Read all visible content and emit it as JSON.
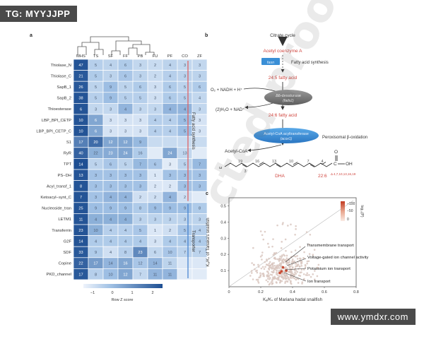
{
  "watermarks": {
    "top_left": "TG: MYYJJPP",
    "bottom_right": "www.ymdxr.com",
    "diagonal": "cted proofs"
  },
  "colors": {
    "heat_low": "#eaf1fb",
    "heat_high": "#1e4f93",
    "sidebar_fatty": "#e05a5a",
    "sidebar_transporter": "#3f7fcf",
    "pathway_red": "#d0463f",
    "enzyme_blue": "#3a8fd6",
    "scatter_dot": "#d9c5bd",
    "scatter_hot": "#c94a32"
  },
  "panel_a": {
    "label": "a",
    "columns": [
      "MHS",
      "TS",
      "SF",
      "FF",
      "PB",
      "FU",
      "PF",
      "CO",
      "ZF"
    ],
    "rows": [
      {
        "name": "Thiolase_N",
        "cells": [
          "47",
          "5",
          "4",
          "6",
          "3",
          "2",
          "4",
          "3",
          "3"
        ],
        "z": [
          2.3,
          -0.3,
          -0.4,
          -0.2,
          -0.5,
          -0.6,
          -0.4,
          -0.5,
          -0.5
        ]
      },
      {
        "name": "Thiolase_C",
        "cells": [
          "21",
          "5",
          "3",
          "6",
          "3",
          "2",
          "4",
          "3",
          "3"
        ],
        "z": [
          2.2,
          -0.2,
          -0.4,
          -0.1,
          -0.4,
          -0.6,
          -0.3,
          -0.4,
          -0.4
        ]
      },
      {
        "name": "SapB_1",
        "cells": [
          "26",
          "5",
          "9",
          "5",
          "6",
          "3",
          "6",
          "5",
          "6"
        ],
        "z": [
          2.2,
          -0.4,
          0.1,
          -0.4,
          -0.2,
          -0.7,
          -0.2,
          -0.4,
          -0.2
        ]
      },
      {
        "name": "SapB_2",
        "cells": [
          "38",
          "5",
          "9",
          "5",
          "5",
          "3",
          "6",
          "5",
          "4"
        ],
        "z": [
          2.3,
          -0.3,
          0.1,
          -0.3,
          -0.3,
          -0.7,
          -0.2,
          -0.3,
          -0.5
        ]
      },
      {
        "name": "Thioesterase",
        "cells": [
          "6",
          "3",
          "3",
          "4",
          "3",
          "3",
          "4",
          "4",
          "3"
        ],
        "z": [
          2.3,
          -0.5,
          -0.5,
          0.3,
          -0.5,
          -0.5,
          0.3,
          0.3,
          -0.5
        ]
      },
      {
        "name": "LBP_BPI_CETP",
        "cells": [
          "10",
          "6",
          "3",
          "3",
          "3",
          "4",
          "4",
          "5",
          "3"
        ],
        "z": [
          2.3,
          0.6,
          -0.8,
          -0.8,
          -0.8,
          -0.3,
          -0.3,
          0.1,
          -0.8
        ]
      },
      {
        "name": "LBP_BPI_CETP_C",
        "cells": [
          "10",
          "6",
          "3",
          "3",
          "3",
          "4",
          "4",
          "5",
          "3"
        ],
        "z": [
          2.3,
          0.6,
          -0.8,
          -0.8,
          -0.8,
          -0.3,
          -0.3,
          0.1,
          -0.8
        ]
      },
      {
        "name": "S1",
        "cells": [
          "17",
          "20",
          "12",
          "12",
          "9",
          "",
          "",
          "",
          ""
        ],
        "z": [
          1.4,
          1.8,
          0.6,
          0.6,
          0.2,
          -0.6,
          -0.6,
          -0.6,
          -0.6
        ]
      },
      {
        "name": "RyR",
        "cells": [
          "40",
          "22",
          "23",
          "24",
          "16",
          "",
          "24",
          "13",
          ""
        ],
        "z": [
          2.0,
          0.4,
          0.5,
          0.6,
          -0.2,
          -1.0,
          0.6,
          -0.5,
          -1.0
        ]
      },
      {
        "name": "TPT",
        "cells": [
          "14",
          "5",
          "6",
          "5",
          "7",
          "6",
          "3",
          "5",
          "7"
        ],
        "z": [
          2.4,
          -0.4,
          -0.1,
          -0.4,
          0.2,
          -0.1,
          -1.0,
          -0.4,
          0.2
        ]
      },
      {
        "name": "PS−DH",
        "cells": [
          "13",
          "3",
          "3",
          "3",
          "3",
          "1",
          "3",
          "3",
          "3"
        ],
        "z": [
          2.3,
          0.0,
          0.0,
          0.0,
          0.0,
          -0.9,
          0.0,
          0.0,
          0.0
        ]
      },
      {
        "name": "Acyl_transf_1",
        "cells": [
          "8",
          "3",
          "3",
          "3",
          "3",
          "2",
          "2",
          "3",
          "3"
        ],
        "z": [
          2.3,
          0.0,
          0.0,
          0.0,
          0.0,
          -0.9,
          -0.9,
          0.0,
          0.0
        ]
      },
      {
        "name": "Ketoacyl−synt_C",
        "cells": [
          "7",
          "3",
          "4",
          "4",
          "2",
          "2",
          "4",
          "2",
          ""
        ],
        "z": [
          2.3,
          0.0,
          0.3,
          0.3,
          -0.7,
          -0.7,
          0.3,
          -0.7,
          -1.0
        ]
      },
      {
        "name": "Nucleoside_tran",
        "cells": [
          "25",
          "9",
          "9",
          "9",
          "8",
          "9",
          "9",
          "9",
          "8"
        ],
        "z": [
          2.3,
          0.1,
          0.1,
          0.1,
          -0.2,
          0.1,
          0.1,
          0.1,
          -0.2
        ]
      },
      {
        "name": "LETM1",
        "cells": [
          "11",
          "4",
          "4",
          "4",
          "3",
          "3",
          "3",
          "3",
          "3"
        ],
        "z": [
          2.3,
          0.4,
          0.4,
          0.4,
          -0.4,
          -0.4,
          -0.4,
          -0.4,
          -0.4
        ]
      },
      {
        "name": "Transferrin",
        "cells": [
          "23",
          "10",
          "4",
          "4",
          "5",
          "1",
          "2",
          "5",
          "4"
        ],
        "z": [
          2.3,
          0.4,
          -0.3,
          -0.3,
          -0.1,
          -0.9,
          -0.7,
          -0.1,
          -0.3
        ]
      },
      {
        "name": "G2F",
        "cells": [
          "14",
          "4",
          "4",
          "4",
          "4",
          "3",
          "4",
          "4",
          "4"
        ],
        "z": [
          2.3,
          -0.2,
          -0.2,
          -0.2,
          -0.2,
          -0.8,
          -0.2,
          -0.2,
          -0.2
        ]
      },
      {
        "name": "SDF",
        "cells": [
          "33",
          "9",
          "4",
          "8",
          "23",
          "6",
          "10",
          "7",
          "7"
        ],
        "z": [
          2.2,
          -0.2,
          -0.7,
          -0.3,
          1.2,
          -0.5,
          -0.1,
          -0.4,
          -0.4
        ]
      },
      {
        "name": "Copine",
        "cells": [
          "22",
          "17",
          "14",
          "16",
          "12",
          "14",
          "11",
          "",
          ""
        ],
        "z": [
          2.0,
          0.8,
          0.3,
          0.6,
          -0.1,
          0.3,
          -0.4,
          -0.9,
          -0.9
        ]
      },
      {
        "name": "PKD_channel",
        "cells": [
          "17",
          "8",
          "10",
          "12",
          "7",
          "11",
          "11",
          "",
          ""
        ],
        "z": [
          2.2,
          -0.3,
          0.1,
          0.6,
          -0.5,
          0.3,
          0.3,
          -1.0,
          -1.0
        ]
      }
    ],
    "groups": [
      {
        "label": "Fatty acid synthesis",
        "first_row": 0,
        "last_row": 12,
        "color": "#e05a5a"
      },
      {
        "label": "Transporter",
        "first_row": 13,
        "last_row": 19,
        "color": "#3f7fcf"
      }
    ],
    "colorbar": {
      "ticks": [
        "−1",
        "0",
        "1",
        "2"
      ],
      "label": "Row Z score"
    }
  },
  "panel_b": {
    "label": "b",
    "top": "Citrate cycle",
    "acetyl": "Acetyl coenzyme A",
    "fas": "fasn",
    "fas_text": "Fatty acid synthesis",
    "fa245": "24:5 fatty acid",
    "o2": "O₂ + NADH + H⁺",
    "h2o": "(2)H₂O + NAD⁺",
    "desat": "Δ6-desaturase",
    "desat_gene": "(fads2)",
    "fa246": "24:6 fatty acid",
    "acox1": "Acetyl-CoA acyltransferase",
    "acox1_gene": "(acox1)",
    "perox": "Peroxisomal β-oxidation",
    "acetylcoa": "Acetyl-CoA",
    "c": "C",
    "oh": "OH",
    "o": "O",
    "carbon_numbers": [
      "19",
      "16",
      "13",
      "10",
      "7",
      "4",
      "3"
    ],
    "dha": "DHA",
    "dha_formula": "22:6",
    "dha_positions": "Δ 4,7,10,13,16,19",
    "chain_end": "ω"
  },
  "panel_c": {
    "label": "c",
    "xlabel": "Kₐ/Kₛ of Mariana hadal snailfish",
    "ylabel": "Kₐ/Kₛ of Tanaka's snailfish",
    "xticks": [
      "0",
      "0.2",
      "0.4",
      "0.6",
      "0.8"
    ],
    "yticks": [
      "0.1",
      "0.2",
      "0.3",
      "0.4",
      "0.5"
    ],
    "legend_ticks": [
      "−100",
      "−50",
      "0"
    ],
    "legend_label": "log₁₀(P)",
    "annotations": [
      "Transmembrane transport",
      "Voltage-gated ion channel activity",
      "Potassium ion transport",
      "Ion transport"
    ]
  },
  "chart_data": {
    "type": "scatter",
    "title": "",
    "xlabel": "Kₐ/Kₛ of Mariana hadal snailfish",
    "ylabel": "Kₐ/Kₛ of Tanaka's snailfish",
    "xlim": [
      0,
      0.8
    ],
    "ylim": [
      0,
      0.55
    ],
    "grid": false,
    "points_highlighted": [
      {
        "x": 0.34,
        "y": 0.12
      },
      {
        "x": 0.36,
        "y": 0.1
      },
      {
        "x": 0.33,
        "y": 0.095
      },
      {
        "x": 0.32,
        "y": 0.085
      }
    ]
  }
}
